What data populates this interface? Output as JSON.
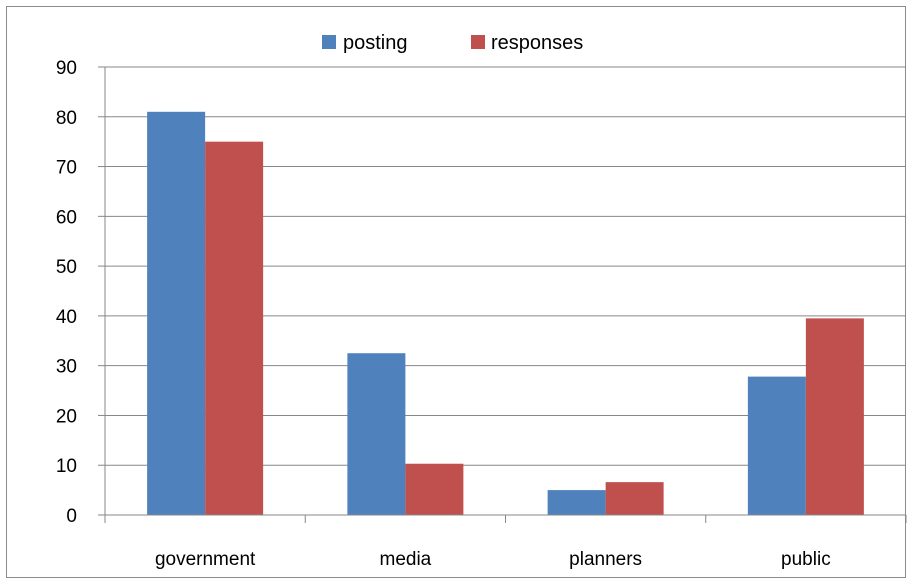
{
  "chart_data": {
    "type": "bar",
    "categories": [
      "government",
      "media",
      "planners",
      "public"
    ],
    "series": [
      {
        "name": "posting",
        "values": [
          81,
          32.5,
          5,
          27.8
        ]
      },
      {
        "name": "responses",
        "values": [
          75,
          10.3,
          6.6,
          39.5
        ]
      }
    ],
    "ylim": [
      0,
      90
    ],
    "yticks": [
      0,
      10,
      20,
      30,
      40,
      50,
      60,
      70,
      80,
      90
    ],
    "grid": true,
    "legend": "top-center"
  },
  "colors": {
    "posting": "#4F81BD",
    "responses": "#C0504D",
    "grid": "#878787",
    "axis": "#878787"
  }
}
